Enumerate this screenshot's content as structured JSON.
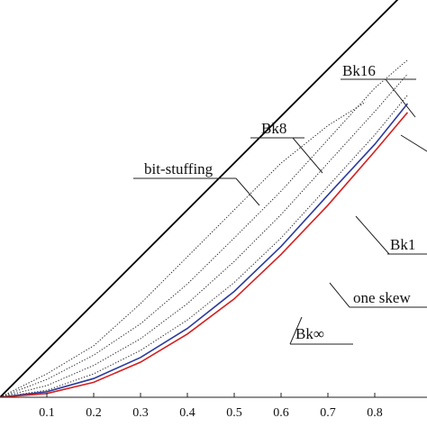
{
  "chart_data": {
    "type": "line",
    "title": "",
    "xlabel": "",
    "ylabel": "",
    "xlim": [
      0.0,
      0.87
    ],
    "ylim": [
      0.0,
      0.87
    ],
    "x_ticks": [
      "0.1",
      "0.2",
      "0.3",
      "0.4",
      "0.5",
      "0.6",
      "0.7",
      "0.8"
    ],
    "x_tick_values": [
      0.1,
      0.2,
      0.3,
      0.4,
      0.5,
      0.6,
      0.7,
      0.8
    ],
    "grid": false,
    "series": [
      {
        "name": "bit-stuffing",
        "color": "#000000",
        "style": "solid",
        "x": [
          0.0,
          0.87
        ],
        "y": [
          0.0,
          0.87
        ]
      },
      {
        "name": "Bk8",
        "color": "#333333",
        "style": "dotted",
        "x": [
          0.0,
          0.1,
          0.2,
          0.3,
          0.4,
          0.5,
          0.6,
          0.7,
          0.78
        ],
        "y": [
          0.0,
          0.05,
          0.11,
          0.2,
          0.3,
          0.4,
          0.5,
          0.58,
          0.63
        ]
      },
      {
        "name": "Bk16",
        "color": "#333333",
        "style": "dotted",
        "x": [
          0.0,
          0.1,
          0.2,
          0.3,
          0.4,
          0.5,
          0.6,
          0.7,
          0.8,
          0.87
        ],
        "y": [
          0.0,
          0.038,
          0.09,
          0.157,
          0.242,
          0.34,
          0.44,
          0.55,
          0.66,
          0.72
        ]
      },
      {
        "name": "",
        "color": "#333333",
        "style": "dotted",
        "x": [
          0.0,
          0.1,
          0.2,
          0.3,
          0.4,
          0.5,
          0.6,
          0.7,
          0.8,
          0.87
        ],
        "y": [
          0.0,
          0.025,
          0.068,
          0.125,
          0.2,
          0.29,
          0.39,
          0.5,
          0.61,
          0.69
        ]
      },
      {
        "name": "",
        "color": "#333333",
        "style": "dotted",
        "x": [
          0.0,
          0.1,
          0.2,
          0.3,
          0.4,
          0.5,
          0.6,
          0.7,
          0.8,
          0.87
        ],
        "y": [
          0.0,
          0.015,
          0.05,
          0.1,
          0.165,
          0.245,
          0.34,
          0.45,
          0.56,
          0.645
        ]
      },
      {
        "name": "one skew",
        "color": "#2b3c9e",
        "style": "solid",
        "x": [
          0.0,
          0.1,
          0.2,
          0.3,
          0.4,
          0.5,
          0.6,
          0.7,
          0.8,
          0.87
        ],
        "y": [
          0.0,
          0.012,
          0.04,
          0.085,
          0.147,
          0.226,
          0.322,
          0.432,
          0.54,
          0.627
        ]
      },
      {
        "name": "Bk∞",
        "color": "#d42020",
        "style": "solid",
        "x": [
          0.0,
          0.1,
          0.2,
          0.3,
          0.4,
          0.5,
          0.6,
          0.7,
          0.8,
          0.87
        ],
        "y": [
          0.0,
          0.008,
          0.032,
          0.075,
          0.135,
          0.21,
          0.305,
          0.41,
          0.525,
          0.608
        ]
      }
    ],
    "annotations": [
      {
        "text": "Bk16",
        "target_series": "Bk16"
      },
      {
        "text": "Bk8",
        "target_series": "Bk8"
      },
      {
        "text": "bit-stuffing",
        "target_series": "bit-stuffing"
      },
      {
        "text": "Bk1",
        "target_series": ""
      },
      {
        "text": "one skew",
        "target_series": "one skew"
      },
      {
        "text": "Bk∞",
        "target_series": "Bk∞"
      }
    ]
  }
}
